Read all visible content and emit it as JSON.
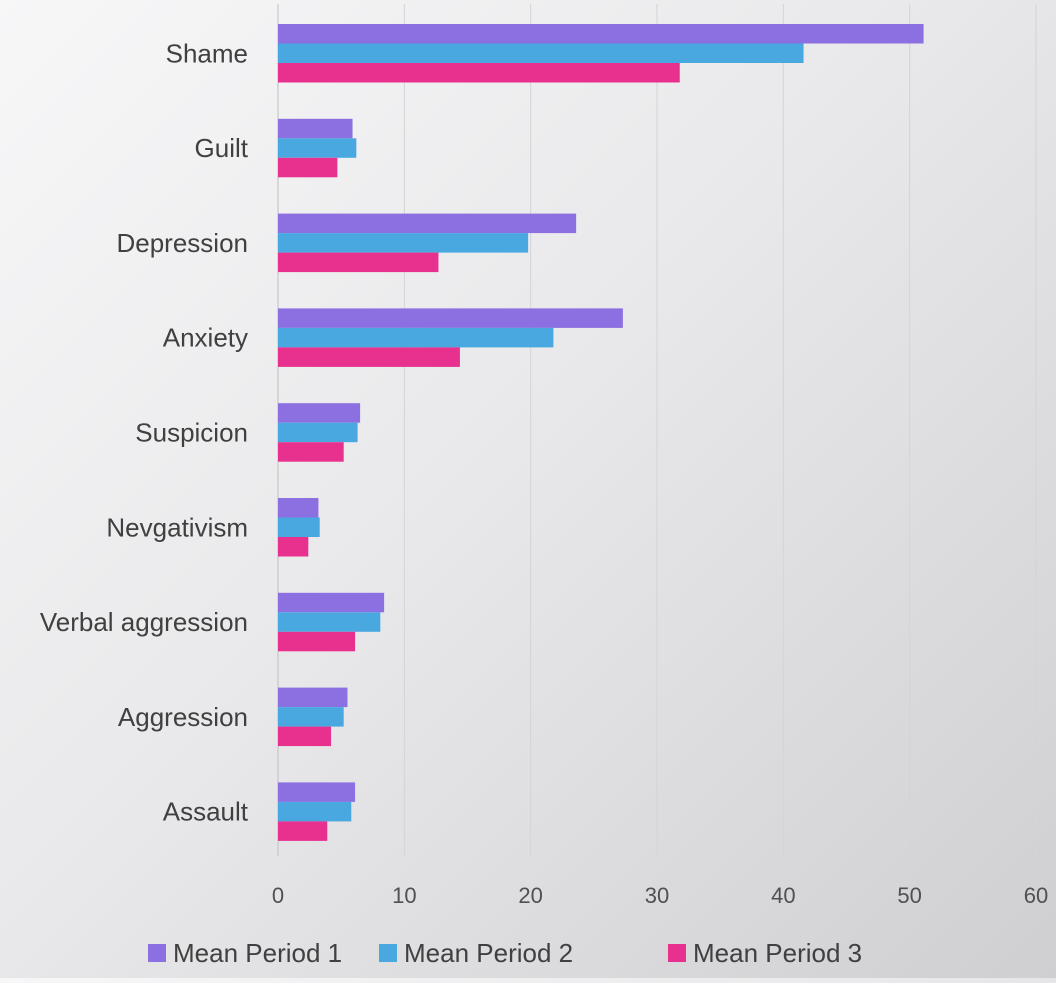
{
  "chart_data": {
    "type": "bar",
    "orientation": "horizontal",
    "title": "",
    "xlabel": "",
    "ylabel": "",
    "categories": [
      "Shame",
      "Guilt",
      "Depression",
      "Anxiety",
      "Suspicion",
      "Nevgativism",
      "Verbal aggression",
      "Aggression",
      "Assault"
    ],
    "series": [
      {
        "name": "Mean Period 1",
        "color": "#8c6fe0",
        "values": [
          51.1,
          5.9,
          23.6,
          27.3,
          6.5,
          3.2,
          8.4,
          5.5,
          6.1
        ]
      },
      {
        "name": "Mean Period 2",
        "color": "#4aa8e0",
        "values": [
          41.6,
          6.2,
          19.8,
          21.8,
          6.3,
          3.3,
          8.1,
          5.2,
          5.8
        ]
      },
      {
        "name": "Mean Period 3",
        "color": "#e8308f",
        "values": [
          31.8,
          4.7,
          12.7,
          14.4,
          5.2,
          2.4,
          6.1,
          4.2,
          3.9
        ]
      }
    ],
    "xlim": [
      0,
      60
    ],
    "xticks": [
      "0",
      "10",
      "20",
      "30",
      "40",
      "50",
      "60"
    ],
    "grid": true,
    "legend_position": "bottom"
  }
}
